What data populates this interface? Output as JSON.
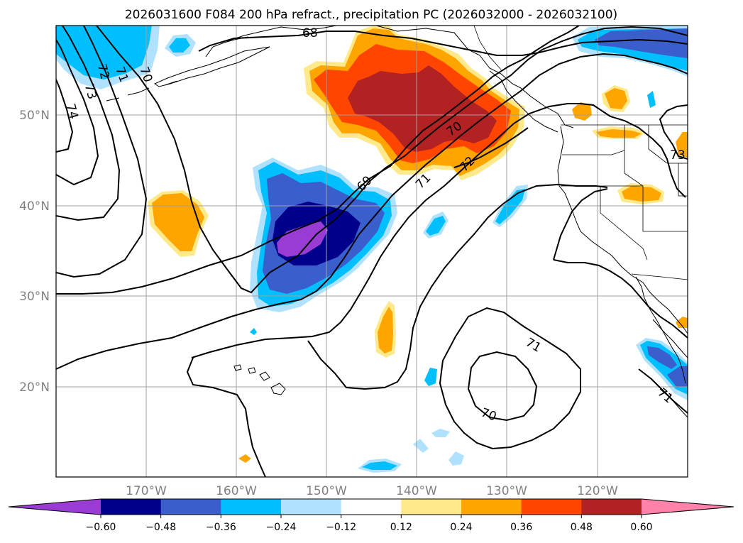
{
  "title": "2026031600 F084 200 hPa refract., precipitation PC (2026032000 - 2026032100)",
  "lat_labels": [
    "50°N",
    "40°N",
    "30°N",
    "20°N"
  ],
  "lon_labels": [
    "170°W",
    "160°W",
    "150°W",
    "140°W",
    "130°W",
    "120°W"
  ],
  "colorbar": {
    "ticks": [
      "−0.60",
      "−0.48",
      "−0.36",
      "−0.24",
      "−0.12",
      "0.12",
      "0.24",
      "0.36",
      "0.48",
      "0.60"
    ],
    "colors": [
      "#9a3bd3",
      "#00008b",
      "#3a5fcd",
      "#00bfff",
      "#b0e2ff",
      "#ffffff",
      "#ffe98a",
      "#ffa500",
      "#ff4500",
      "#b22222",
      "#ff82ab"
    ]
  },
  "contour_labels": [
    "68",
    "69",
    "70",
    "70",
    "70",
    "71",
    "71",
    "71",
    "71",
    "72",
    "72",
    "73",
    "73",
    "74"
  ],
  "colors": {
    "purple": "#9a3bd3",
    "navy": "#00008b",
    "royal": "#3a5fcd",
    "sky": "#00bfff",
    "lightsky": "#b0e2ff",
    "yellow": "#ffe98a",
    "orange": "#ffa500",
    "redorange": "#ff4500",
    "firebrick": "#b22222",
    "pink": "#ff82ab"
  }
}
